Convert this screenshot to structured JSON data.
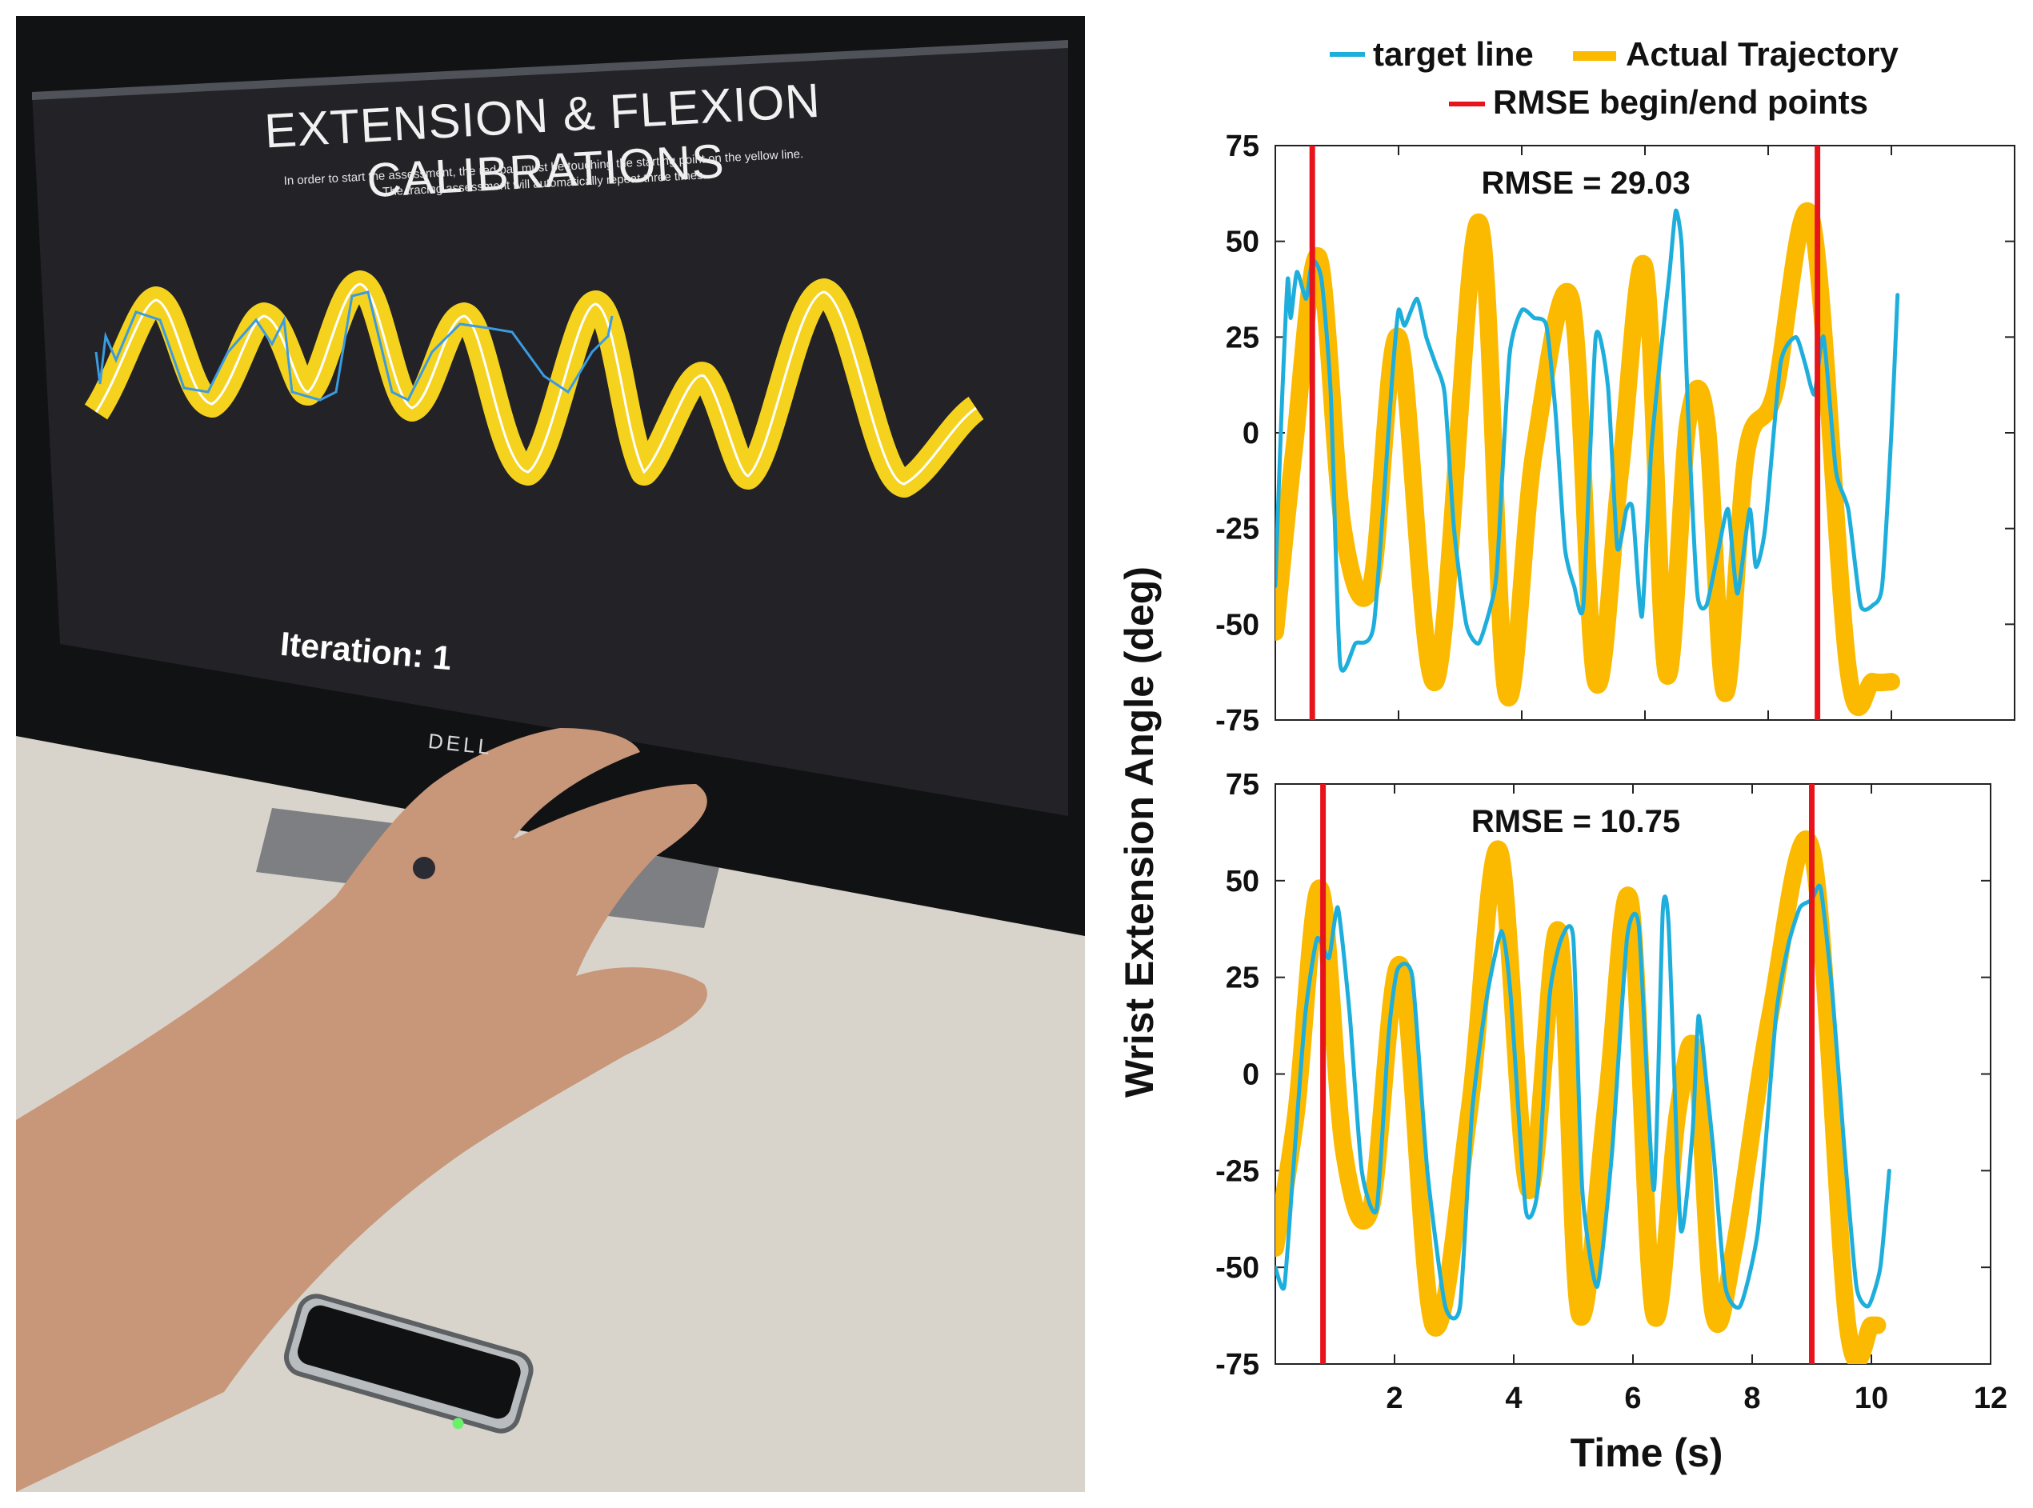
{
  "photo": {
    "screen_title": "EXTENSION & FLEXION CALIBRATIONS",
    "screen_instructions": [
      "In order to start the assessment, the red ball must be touching the starting point on the yellow line.",
      "The tracing assessment will automatically repeat three times."
    ],
    "iteration_label": "Iteration: 1",
    "monitor_brand": "DELL"
  },
  "chart_data": [
    {
      "type": "line",
      "title": "",
      "annotation": "RMSE = 29.03",
      "xlabel": "Time (s)",
      "ylabel": "Wrist Extension Angle (deg)",
      "xlim": [
        0,
        12
      ],
      "ylim": [
        -75,
        75
      ],
      "yticks": [
        75,
        50,
        25,
        0,
        -25,
        -50,
        -75
      ],
      "xticks": [
        2,
        4,
        6,
        8,
        10,
        12
      ],
      "rmse_bounds": [
        0.6,
        8.8
      ],
      "series": [
        {
          "name": "Actual Trajectory",
          "color": "#FBBA00",
          "x": [
            0.0,
            0.3,
            0.7,
            1.1,
            1.55,
            2.0,
            2.6,
            3.3,
            3.75,
            4.2,
            4.8,
            5.2,
            5.6,
            6.0,
            6.35,
            6.7,
            7.0,
            7.3,
            7.65,
            8.1,
            8.7,
            9.3,
            9.7,
            10.0
          ],
          "values": [
            -52,
            -5,
            46,
            -25,
            -40,
            25,
            -65,
            55,
            -68,
            -5,
            35,
            -65,
            -10,
            43,
            -63,
            3,
            3,
            -68,
            -5,
            10,
            56,
            -62,
            -65,
            -65
          ]
        },
        {
          "name": "target line",
          "color": "#1EAEDC",
          "x": [
            0.0,
            0.1,
            0.2,
            0.25,
            0.35,
            0.5,
            0.6,
            0.75,
            0.9,
            1.05,
            1.3,
            1.6,
            1.9,
            2.0,
            2.1,
            2.3,
            2.45,
            2.6,
            2.75,
            2.9,
            3.1,
            3.3,
            3.5,
            3.6,
            3.8,
            4.0,
            4.2,
            4.4,
            4.55,
            4.7,
            4.85,
            5.0,
            5.2,
            5.4,
            5.55,
            5.7,
            5.8,
            5.95,
            6.1,
            6.25,
            6.4,
            6.5,
            6.6,
            6.7,
            6.85,
            7.0,
            7.2,
            7.35,
            7.5,
            7.7,
            7.8,
            7.95,
            8.2,
            8.45,
            8.6,
            8.75,
            8.9,
            9.1,
            9.3,
            9.5,
            9.7,
            9.85,
            10.0,
            10.1
          ],
          "values": [
            -40,
            5,
            40,
            30,
            42,
            35,
            45,
            40,
            10,
            -60,
            -55,
            -50,
            15,
            32,
            28,
            35,
            25,
            18,
            10,
            -25,
            -50,
            -55,
            -45,
            -35,
            20,
            32,
            30,
            28,
            5,
            -30,
            -40,
            -45,
            25,
            12,
            -30,
            -20,
            -20,
            -48,
            -5,
            20,
            42,
            58,
            48,
            5,
            -42,
            -45,
            -30,
            -20,
            -42,
            -20,
            -35,
            -25,
            18,
            25,
            18,
            10,
            25,
            -10,
            -20,
            -45,
            -45,
            -40,
            0,
            36
          ]
        }
      ]
    },
    {
      "type": "line",
      "title": "",
      "annotation": "RMSE = 10.75",
      "xlabel": "Time (s)",
      "ylabel": "Wrist Extension Angle (deg)",
      "xlim": [
        0,
        12
      ],
      "ylim": [
        -75,
        75
      ],
      "yticks": [
        75,
        50,
        25,
        0,
        -25,
        -50,
        -75
      ],
      "xticks": [
        2,
        4,
        6,
        8,
        10,
        12
      ],
      "rmse_bounds": [
        0.8,
        9.0
      ],
      "series": [
        {
          "name": "Actual Trajectory",
          "color": "#FBBA00",
          "x": [
            0.0,
            0.35,
            0.75,
            1.15,
            1.6,
            2.1,
            2.65,
            3.25,
            3.75,
            4.25,
            4.75,
            5.1,
            5.55,
            5.95,
            6.35,
            6.75,
            7.05,
            7.35,
            7.7,
            8.3,
            9.0,
            9.6,
            10.0,
            10.1
          ],
          "values": [
            -45,
            -10,
            48,
            -20,
            -35,
            28,
            -65,
            -10,
            58,
            -30,
            37,
            -62,
            -8,
            45,
            -62,
            -10,
            5,
            -62,
            -45,
            15,
            58,
            -65,
            -65,
            -65
          ]
        },
        {
          "name": "target line",
          "color": "#1EAEDC",
          "x": [
            0.0,
            0.15,
            0.3,
            0.5,
            0.7,
            0.9,
            1.05,
            1.25,
            1.45,
            1.7,
            1.9,
            2.05,
            2.3,
            2.55,
            2.85,
            3.1,
            3.3,
            3.55,
            3.8,
            3.95,
            4.2,
            4.4,
            4.6,
            4.8,
            5.0,
            5.15,
            5.4,
            5.65,
            5.9,
            6.1,
            6.35,
            6.5,
            6.6,
            6.8,
            7.0,
            7.1,
            7.25,
            7.35,
            7.55,
            7.8,
            8.1,
            8.4,
            8.6,
            8.8,
            9.0,
            9.15,
            9.35,
            9.55,
            9.75,
            9.95,
            10.15,
            10.3
          ],
          "values": [
            -50,
            -55,
            -25,
            15,
            35,
            30,
            43,
            15,
            -25,
            -35,
            10,
            27,
            25,
            -25,
            -60,
            -60,
            -10,
            20,
            37,
            20,
            -35,
            -30,
            20,
            35,
            35,
            -30,
            -55,
            -20,
            35,
            38,
            -30,
            42,
            38,
            -40,
            -15,
            15,
            -5,
            -20,
            -55,
            -60,
            -40,
            15,
            33,
            43,
            45,
            48,
            20,
            -20,
            -55,
            -60,
            -50,
            -25
          ]
        }
      ]
    }
  ],
  "legend": {
    "items": [
      "target line",
      "Actual Trajectory",
      "RMSE begin/end points"
    ],
    "colors": [
      "#1EAEDC",
      "#FBBA00",
      "#E8141B"
    ]
  }
}
